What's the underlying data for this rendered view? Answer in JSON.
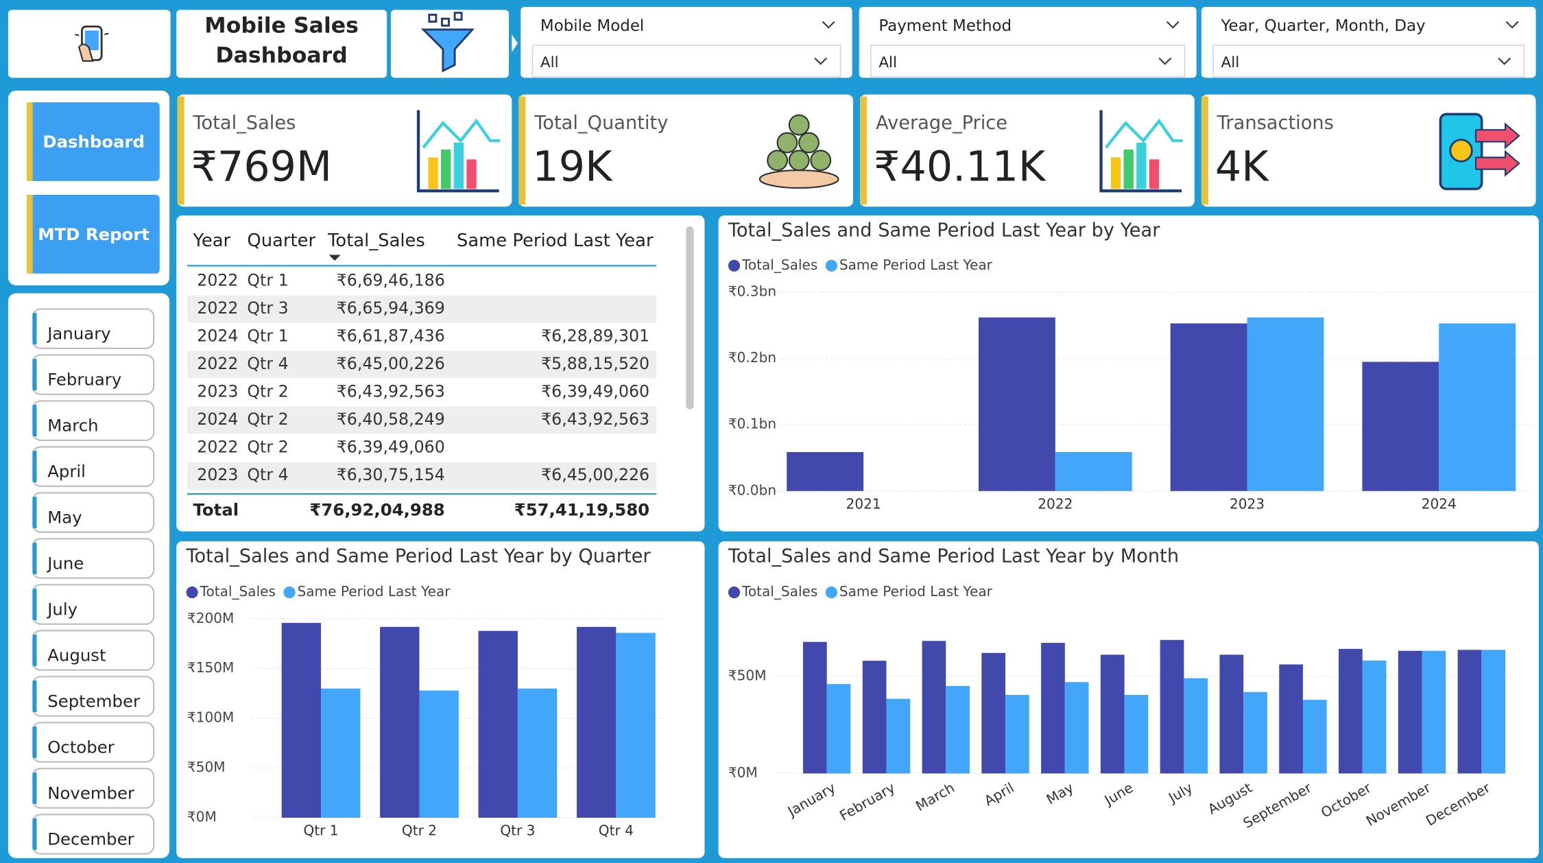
{
  "header": {
    "title_lines": [
      "Mobile Sales",
      "Dashboard"
    ]
  },
  "filters": [
    {
      "label": "Mobile Model",
      "value": "All"
    },
    {
      "label": "Payment Method",
      "value": "All"
    },
    {
      "label": "Year, Quarter, Month, Day",
      "value": "All"
    }
  ],
  "navigation": [
    "Dashboard",
    "MTD Report"
  ],
  "month_slicer": [
    "January",
    "February",
    "March",
    "April",
    "May",
    "June",
    "July",
    "August",
    "September",
    "October",
    "November",
    "December"
  ],
  "kpis": [
    {
      "label": "Total_Sales",
      "value": "₹769M"
    },
    {
      "label": "Total_Quantity",
      "value": "19K"
    },
    {
      "label": "Average_Price",
      "value": "₹40.11K"
    },
    {
      "label": "Transactions",
      "value": "4K"
    }
  ],
  "table": {
    "columns": [
      "Year",
      "Quarter",
      "Total_Sales",
      "Same Period Last Year"
    ],
    "rows": [
      [
        "2022",
        "Qtr 1",
        "₹6,69,46,186",
        null
      ],
      [
        "2022",
        "Qtr 3",
        "₹6,65,94,369",
        null
      ],
      [
        "2024",
        "Qtr 1",
        "₹6,61,87,436",
        "₹6,28,89,301"
      ],
      [
        "2022",
        "Qtr 4",
        "₹6,45,00,226",
        "₹5,88,15,520"
      ],
      [
        "2023",
        "Qtr 2",
        "₹6,43,92,563",
        "₹6,39,49,060"
      ],
      [
        "2024",
        "Qtr 2",
        "₹6,40,58,249",
        "₹6,43,92,563"
      ],
      [
        "2022",
        "Qtr 2",
        "₹6,39,49,060",
        null
      ],
      [
        "2023",
        "Qtr 4",
        "₹6,30,75,154",
        "₹6,45,00,226"
      ]
    ],
    "total": [
      "Total",
      "₹76,92,04,988",
      "₹57,41,19,580"
    ]
  },
  "chart_data": [
    {
      "type": "bar",
      "title": "Total_Sales and Same Period Last Year by Year",
      "categories": [
        "2021",
        "2022",
        "2023",
        "2024"
      ],
      "series": [
        {
          "name": "Total_Sales",
          "color": "#4149ad",
          "values": [
            58800000,
            262000000,
            253000000,
            195000000
          ]
        },
        {
          "name": "Same Period Last Year",
          "color": "#42a6fa",
          "values": [
            null,
            58800000,
            262000000,
            253000000
          ]
        }
      ],
      "ylim": [
        0,
        300000000
      ],
      "yticks": [
        {
          "value": 0,
          "label": "₹0.0bn"
        },
        {
          "value": 100000000,
          "label": "₹0.1bn"
        },
        {
          "value": 200000000,
          "label": "₹0.2bn"
        },
        {
          "value": 300000000,
          "label": "₹0.3bn"
        }
      ],
      "grid": true,
      "legend": "top-left"
    },
    {
      "type": "bar",
      "title": "Total_Sales and Same Period Last Year by Quarter",
      "categories": [
        "Qtr 1",
        "Qtr 2",
        "Qtr 3",
        "Qtr 4"
      ],
      "series": [
        {
          "name": "Total_Sales",
          "color": "#4149ad",
          "values": [
            196000000,
            192000000,
            188000000,
            192000000
          ]
        },
        {
          "name": "Same Period Last Year",
          "color": "#42a6fa",
          "values": [
            130000000,
            128000000,
            130000000,
            186000000
          ]
        }
      ],
      "ylim": [
        0,
        200000000
      ],
      "yticks": [
        {
          "value": 0,
          "label": "₹0M"
        },
        {
          "value": 50000000,
          "label": "₹50M"
        },
        {
          "value": 100000000,
          "label": "₹100M"
        },
        {
          "value": 150000000,
          "label": "₹150M"
        },
        {
          "value": 200000000,
          "label": "₹200M"
        }
      ],
      "grid": true,
      "legend": "top-left"
    },
    {
      "type": "bar",
      "title": "Total_Sales and Same Period Last Year by Month",
      "categories": [
        "January",
        "February",
        "March",
        "April",
        "May",
        "June",
        "July",
        "August",
        "September",
        "October",
        "November",
        "December"
      ],
      "series": [
        {
          "name": "Total_Sales",
          "color": "#4149ad",
          "values": [
            67700000,
            58000000,
            68200000,
            62000000,
            67200000,
            61100000,
            68700000,
            61100000,
            56100000,
            64100000,
            63100000,
            63600000
          ]
        },
        {
          "name": "Same Period Last Year",
          "color": "#42a6fa",
          "values": [
            46000000,
            38400000,
            45000000,
            40400000,
            47000000,
            40400000,
            49000000,
            41900000,
            37900000,
            58100000,
            63100000,
            63600000
          ]
        }
      ],
      "ylim": [
        0,
        80000000
      ],
      "yticks": [
        {
          "value": 0,
          "label": "₹0M"
        },
        {
          "value": 50000000,
          "label": "₹50M"
        }
      ],
      "grid": true,
      "legend": "top-left"
    }
  ]
}
